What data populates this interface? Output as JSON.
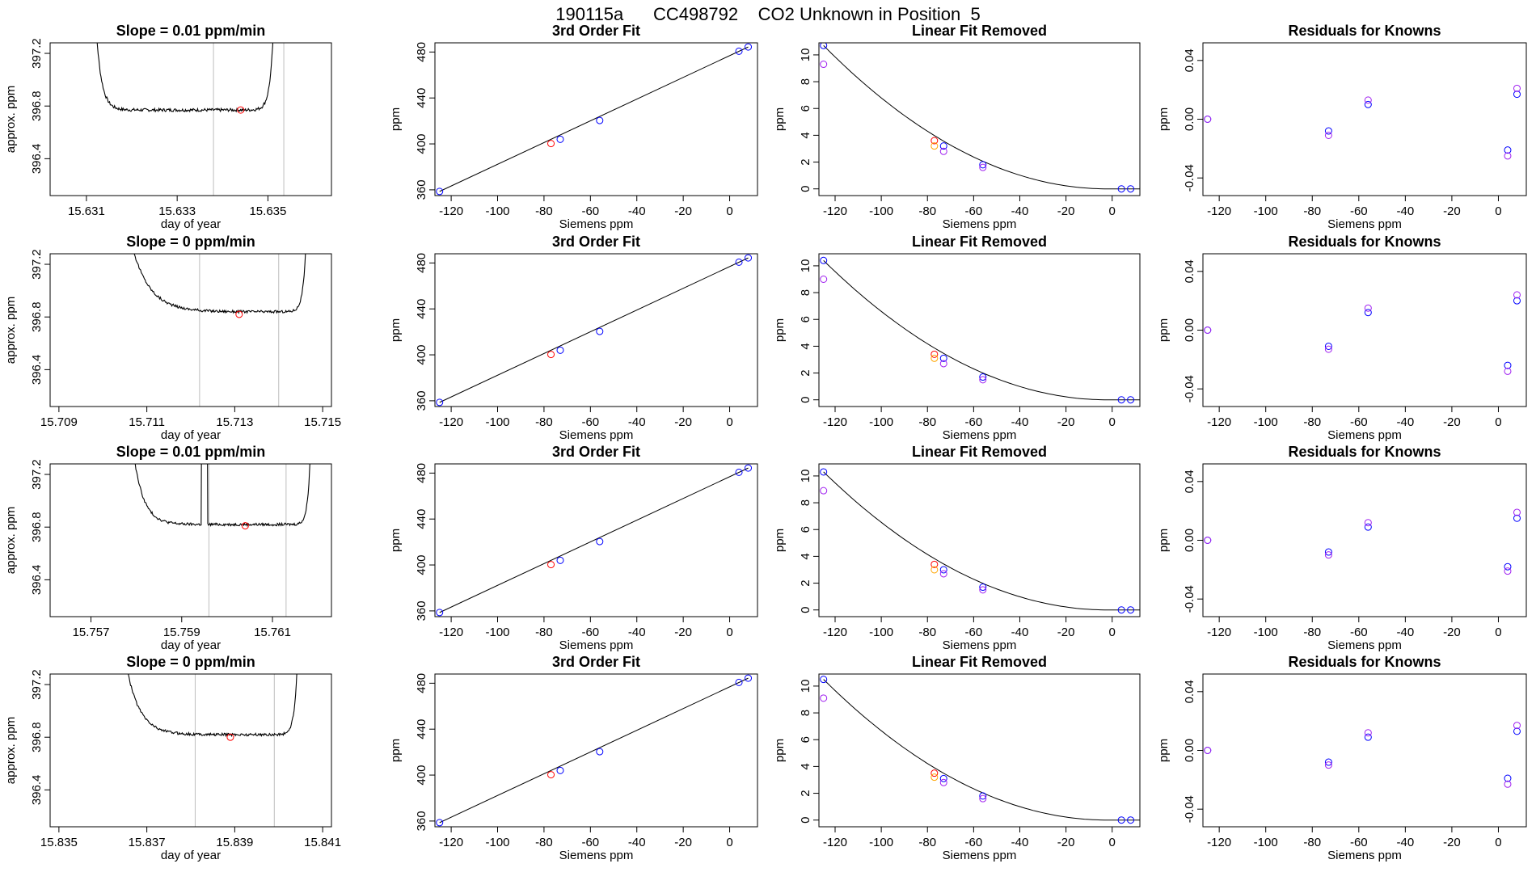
{
  "figure": {
    "title": "190115a      CC498792    CO2 Unknown in Position  5"
  },
  "colors": {
    "line": "#000000",
    "gridline": "#bebebe",
    "known": "#0000ff",
    "red": "#ff0000",
    "orange": "#ffa500",
    "purple": "#a020f0"
  },
  "chart_data": [
    {
      "row": 1,
      "col": 1,
      "type": "line",
      "title": "Slope =  0.01  ppm/min",
      "xlabel": "day of year",
      "ylabel": "approx. ppm",
      "xlim": [
        15.6302,
        15.6364
      ],
      "ylim": [
        396.12,
        397.28
      ],
      "xticks": [
        15.631,
        15.633,
        15.635
      ],
      "yticks": [
        396.4,
        396.8,
        397.2
      ],
      "vlines": [
        15.6338,
        15.63535
      ],
      "trace_x": [
        15.6311,
        15.6352
      ],
      "level": 396.77,
      "noise": 0.012,
      "decay": 0.00012,
      "rise": 8e-05,
      "glitch": null,
      "point": {
        "x": 15.6344,
        "y": 396.77
      }
    },
    {
      "row": 1,
      "col": 2,
      "type": "scatter",
      "title": "3rd Order Fit",
      "xlabel": "Siemens ppm",
      "ylabel": "ppm",
      "xlim": [
        -127,
        12
      ],
      "ylim": [
        355,
        488
      ],
      "xticks": [
        -120,
        -100,
        -80,
        -60,
        -40,
        -20,
        0
      ],
      "yticks": [
        360,
        400,
        440,
        480
      ],
      "fit": [
        [
          -125,
          358.6
        ],
        [
          8,
          484.4
        ]
      ],
      "points": [
        {
          "x": -125,
          "y": 358.6,
          "c": "known"
        },
        {
          "x": -77,
          "y": 400.3,
          "c": "red"
        },
        {
          "x": -73,
          "y": 404,
          "c": "known"
        },
        {
          "x": -56,
          "y": 420.4,
          "c": "known"
        },
        {
          "x": 4,
          "y": 480.7,
          "c": "known"
        },
        {
          "x": 8,
          "y": 484.4,
          "c": "known"
        }
      ]
    },
    {
      "row": 1,
      "col": 3,
      "type": "scatter",
      "title": "Linear Fit Removed",
      "xlabel": "Siemens ppm",
      "ylabel": "ppm",
      "xlim": [
        -127,
        12
      ],
      "ylim": [
        -0.5,
        10.9
      ],
      "xticks": [
        -120,
        -100,
        -80,
        -60,
        -40,
        -20,
        0
      ],
      "yticks": [
        0,
        2,
        4,
        6,
        8,
        10
      ],
      "curve": {
        "a": -125,
        "b": -2,
        "peak": 10.7
      },
      "points": [
        {
          "x": -125,
          "y": 10.7,
          "c": "known"
        },
        {
          "x": -125,
          "y": 9.3,
          "c": "purple"
        },
        {
          "x": -77,
          "y": 3.6,
          "c": "red"
        },
        {
          "x": -77,
          "y": 3.2,
          "c": "orange"
        },
        {
          "x": -73,
          "y": 3.2,
          "c": "known"
        },
        {
          "x": -73,
          "y": 2.8,
          "c": "purple"
        },
        {
          "x": -56,
          "y": 1.8,
          "c": "known"
        },
        {
          "x": -56,
          "y": 1.6,
          "c": "purple"
        },
        {
          "x": 4,
          "y": 0,
          "c": "known"
        },
        {
          "x": 8,
          "y": 0,
          "c": "known"
        }
      ]
    },
    {
      "row": 1,
      "col": 4,
      "type": "scatter",
      "title": "Residuals for Knowns",
      "xlabel": "Siemens ppm",
      "ylabel": "ppm",
      "xlim": [
        -127,
        12
      ],
      "ylim": [
        -0.052,
        0.052
      ],
      "xticks": [
        -120,
        -100,
        -80,
        -60,
        -40,
        -20,
        0
      ],
      "yticks": [
        -0.04,
        0.0,
        0.04
      ],
      "ytick_labels": [
        "-0.04",
        "0.00",
        "0.04"
      ],
      "points": [
        {
          "x": -125,
          "y": 0,
          "c": "known"
        },
        {
          "x": -125,
          "y": 0,
          "c": "purple"
        },
        {
          "x": -73,
          "y": -0.008,
          "c": "known"
        },
        {
          "x": -73,
          "y": -0.011,
          "c": "purple"
        },
        {
          "x": -56,
          "y": 0.01,
          "c": "known"
        },
        {
          "x": -56,
          "y": 0.013,
          "c": "purple"
        },
        {
          "x": 4,
          "y": -0.021,
          "c": "known"
        },
        {
          "x": 4,
          "y": -0.025,
          "c": "purple"
        },
        {
          "x": 8,
          "y": 0.017,
          "c": "known"
        },
        {
          "x": 8,
          "y": 0.021,
          "c": "purple"
        }
      ]
    },
    {
      "row": 2,
      "col": 1,
      "type": "line",
      "title": "Slope =  0  ppm/min",
      "xlabel": "day of year",
      "ylabel": "approx. ppm",
      "xlim": [
        15.7088,
        15.7152
      ],
      "ylim": [
        396.12,
        397.28
      ],
      "xticks": [
        15.709,
        15.711,
        15.713,
        15.715
      ],
      "yticks": [
        396.4,
        396.8,
        397.2
      ],
      "vlines": [
        15.7122,
        15.714
      ],
      "trace_x": [
        15.7102,
        15.7147
      ],
      "level": 396.84,
      "noise": 0.01,
      "decay": 0.0004,
      "rise": 7e-05,
      "glitch": null,
      "point": {
        "x": 15.7131,
        "y": 396.82
      }
    },
    {
      "row": 2,
      "col": 2,
      "type": "scatter",
      "title": "3rd Order Fit",
      "xlabel": "Siemens ppm",
      "ylabel": "ppm",
      "xlim": [
        -127,
        12
      ],
      "ylim": [
        355,
        488
      ],
      "xticks": [
        -120,
        -100,
        -80,
        -60,
        -40,
        -20,
        0
      ],
      "yticks": [
        360,
        400,
        440,
        480
      ],
      "fit": [
        [
          -125,
          358.6
        ],
        [
          8,
          484.4
        ]
      ],
      "points": [
        {
          "x": -125,
          "y": 358.6,
          "c": "known"
        },
        {
          "x": -77,
          "y": 400.3,
          "c": "red"
        },
        {
          "x": -73,
          "y": 404,
          "c": "known"
        },
        {
          "x": -56,
          "y": 420.4,
          "c": "known"
        },
        {
          "x": 4,
          "y": 480.7,
          "c": "known"
        },
        {
          "x": 8,
          "y": 484.4,
          "c": "known"
        }
      ]
    },
    {
      "row": 2,
      "col": 3,
      "type": "scatter",
      "title": "Linear Fit Removed",
      "xlabel": "Siemens ppm",
      "ylabel": "ppm",
      "xlim": [
        -127,
        12
      ],
      "ylim": [
        -0.5,
        10.9
      ],
      "xticks": [
        -120,
        -100,
        -80,
        -60,
        -40,
        -20,
        0
      ],
      "yticks": [
        0,
        2,
        4,
        6,
        8,
        10
      ],
      "curve": {
        "a": -125,
        "b": -2,
        "peak": 10.4
      },
      "points": [
        {
          "x": -125,
          "y": 10.4,
          "c": "known"
        },
        {
          "x": -125,
          "y": 9.0,
          "c": "purple"
        },
        {
          "x": -77,
          "y": 3.4,
          "c": "red"
        },
        {
          "x": -77,
          "y": 3.1,
          "c": "orange"
        },
        {
          "x": -73,
          "y": 3.1,
          "c": "known"
        },
        {
          "x": -73,
          "y": 2.7,
          "c": "purple"
        },
        {
          "x": -56,
          "y": 1.7,
          "c": "known"
        },
        {
          "x": -56,
          "y": 1.5,
          "c": "purple"
        },
        {
          "x": 4,
          "y": 0,
          "c": "known"
        },
        {
          "x": 8,
          "y": 0,
          "c": "known"
        }
      ]
    },
    {
      "row": 2,
      "col": 4,
      "type": "scatter",
      "title": "Residuals for Knowns",
      "xlabel": "Siemens ppm",
      "ylabel": "ppm",
      "xlim": [
        -127,
        12
      ],
      "ylim": [
        -0.052,
        0.052
      ],
      "xticks": [
        -120,
        -100,
        -80,
        -60,
        -40,
        -20,
        0
      ],
      "yticks": [
        -0.04,
        0.0,
        0.04
      ],
      "ytick_labels": [
        "-0.04",
        "0.00",
        "0.04"
      ],
      "points": [
        {
          "x": -125,
          "y": 0,
          "c": "known"
        },
        {
          "x": -125,
          "y": 0,
          "c": "purple"
        },
        {
          "x": -73,
          "y": -0.011,
          "c": "known"
        },
        {
          "x": -73,
          "y": -0.013,
          "c": "purple"
        },
        {
          "x": -56,
          "y": 0.012,
          "c": "known"
        },
        {
          "x": -56,
          "y": 0.015,
          "c": "purple"
        },
        {
          "x": 4,
          "y": -0.024,
          "c": "known"
        },
        {
          "x": 4,
          "y": -0.028,
          "c": "purple"
        },
        {
          "x": 8,
          "y": 0.02,
          "c": "known"
        },
        {
          "x": 8,
          "y": 0.024,
          "c": "purple"
        }
      ]
    },
    {
      "row": 3,
      "col": 1,
      "type": "line",
      "title": "Slope =  0.01  ppm/min",
      "xlabel": "day of year",
      "ylabel": "approx. ppm",
      "xlim": [
        15.7561,
        15.7623
      ],
      "ylim": [
        396.12,
        397.28
      ],
      "xticks": [
        15.757,
        15.759,
        15.761
      ],
      "yticks": [
        396.4,
        396.8,
        397.2
      ],
      "vlines": [
        15.7596,
        15.7613
      ],
      "trace_x": [
        15.7577,
        15.7619
      ],
      "level": 396.82,
      "noise": 0.01,
      "decay": 0.00022,
      "rise": 6e-05,
      "glitch": {
        "x": 15.7595,
        "w": 6e-05
      },
      "point": {
        "x": 15.7604,
        "y": 396.81
      }
    },
    {
      "row": 3,
      "col": 2,
      "type": "scatter",
      "title": "3rd Order Fit",
      "xlabel": "Siemens ppm",
      "ylabel": "ppm",
      "xlim": [
        -127,
        12
      ],
      "ylim": [
        355,
        488
      ],
      "xticks": [
        -120,
        -100,
        -80,
        -60,
        -40,
        -20,
        0
      ],
      "yticks": [
        360,
        400,
        440,
        480
      ],
      "fit": [
        [
          -125,
          358.6
        ],
        [
          8,
          484.4
        ]
      ],
      "points": [
        {
          "x": -125,
          "y": 358.6,
          "c": "known"
        },
        {
          "x": -77,
          "y": 400.3,
          "c": "red"
        },
        {
          "x": -73,
          "y": 404,
          "c": "known"
        },
        {
          "x": -56,
          "y": 420.4,
          "c": "known"
        },
        {
          "x": 4,
          "y": 480.7,
          "c": "known"
        },
        {
          "x": 8,
          "y": 484.4,
          "c": "known"
        }
      ]
    },
    {
      "row": 3,
      "col": 3,
      "type": "scatter",
      "title": "Linear Fit Removed",
      "xlabel": "Siemens ppm",
      "ylabel": "ppm",
      "xlim": [
        -127,
        12
      ],
      "ylim": [
        -0.5,
        10.9
      ],
      "xticks": [
        -120,
        -100,
        -80,
        -60,
        -40,
        -20,
        0
      ],
      "yticks": [
        0,
        2,
        4,
        6,
        8,
        10
      ],
      "curve": {
        "a": -125,
        "b": -2,
        "peak": 10.3
      },
      "points": [
        {
          "x": -125,
          "y": 10.3,
          "c": "known"
        },
        {
          "x": -125,
          "y": 8.9,
          "c": "purple"
        },
        {
          "x": -77,
          "y": 3.4,
          "c": "red"
        },
        {
          "x": -77,
          "y": 3.0,
          "c": "orange"
        },
        {
          "x": -73,
          "y": 3.0,
          "c": "known"
        },
        {
          "x": -73,
          "y": 2.7,
          "c": "purple"
        },
        {
          "x": -56,
          "y": 1.7,
          "c": "known"
        },
        {
          "x": -56,
          "y": 1.5,
          "c": "purple"
        },
        {
          "x": 4,
          "y": 0,
          "c": "known"
        },
        {
          "x": 8,
          "y": 0,
          "c": "known"
        }
      ]
    },
    {
      "row": 3,
      "col": 4,
      "type": "scatter",
      "title": "Residuals for Knowns",
      "xlabel": "Siemens ppm",
      "ylabel": "ppm",
      "xlim": [
        -127,
        12
      ],
      "ylim": [
        -0.052,
        0.052
      ],
      "xticks": [
        -120,
        -100,
        -80,
        -60,
        -40,
        -20,
        0
      ],
      "yticks": [
        -0.04,
        0.0,
        0.04
      ],
      "ytick_labels": [
        "-0.04",
        "0.00",
        "0.04"
      ],
      "points": [
        {
          "x": -125,
          "y": 0,
          "c": "known"
        },
        {
          "x": -125,
          "y": 0,
          "c": "purple"
        },
        {
          "x": -73,
          "y": -0.008,
          "c": "known"
        },
        {
          "x": -73,
          "y": -0.01,
          "c": "purple"
        },
        {
          "x": -56,
          "y": 0.009,
          "c": "known"
        },
        {
          "x": -56,
          "y": 0.012,
          "c": "purple"
        },
        {
          "x": 4,
          "y": -0.018,
          "c": "known"
        },
        {
          "x": 4,
          "y": -0.021,
          "c": "purple"
        },
        {
          "x": 8,
          "y": 0.015,
          "c": "known"
        },
        {
          "x": 8,
          "y": 0.019,
          "c": "purple"
        }
      ]
    },
    {
      "row": 4,
      "col": 1,
      "type": "line",
      "title": "Slope =  0  ppm/min",
      "xlabel": "day of year",
      "ylabel": "approx. ppm",
      "xlim": [
        15.8348,
        15.8412
      ],
      "ylim": [
        396.12,
        397.28
      ],
      "xticks": [
        15.835,
        15.837,
        15.839,
        15.841
      ],
      "yticks": [
        396.4,
        396.8,
        397.2
      ],
      "vlines": [
        15.8381,
        15.8399
      ],
      "trace_x": [
        15.8362,
        15.8405
      ],
      "level": 396.82,
      "noise": 0.01,
      "decay": 0.0003,
      "rise": 7e-05,
      "glitch": null,
      "point": {
        "x": 15.8389,
        "y": 396.8
      }
    },
    {
      "row": 4,
      "col": 2,
      "type": "scatter",
      "title": "3rd Order Fit",
      "xlabel": "Siemens ppm",
      "ylabel": "ppm",
      "xlim": [
        -127,
        12
      ],
      "ylim": [
        355,
        488
      ],
      "xticks": [
        -120,
        -100,
        -80,
        -60,
        -40,
        -20,
        0
      ],
      "yticks": [
        360,
        400,
        440,
        480
      ],
      "fit": [
        [
          -125,
          358.6
        ],
        [
          8,
          484.4
        ]
      ],
      "points": [
        {
          "x": -125,
          "y": 358.6,
          "c": "known"
        },
        {
          "x": -77,
          "y": 400.3,
          "c": "red"
        },
        {
          "x": -73,
          "y": 404,
          "c": "known"
        },
        {
          "x": -56,
          "y": 420.4,
          "c": "known"
        },
        {
          "x": 4,
          "y": 480.7,
          "c": "known"
        },
        {
          "x": 8,
          "y": 484.4,
          "c": "known"
        }
      ]
    },
    {
      "row": 4,
      "col": 3,
      "type": "scatter",
      "title": "Linear Fit Removed",
      "xlabel": "Siemens ppm",
      "ylabel": "ppm",
      "xlim": [
        -127,
        12
      ],
      "ylim": [
        -0.5,
        10.9
      ],
      "xticks": [
        -120,
        -100,
        -80,
        -60,
        -40,
        -20,
        0
      ],
      "yticks": [
        0,
        2,
        4,
        6,
        8,
        10
      ],
      "curve": {
        "a": -125,
        "b": -2,
        "peak": 10.5
      },
      "points": [
        {
          "x": -125,
          "y": 10.5,
          "c": "known"
        },
        {
          "x": -125,
          "y": 9.1,
          "c": "purple"
        },
        {
          "x": -77,
          "y": 3.5,
          "c": "red"
        },
        {
          "x": -77,
          "y": 3.2,
          "c": "orange"
        },
        {
          "x": -73,
          "y": 3.1,
          "c": "known"
        },
        {
          "x": -73,
          "y": 2.8,
          "c": "purple"
        },
        {
          "x": -56,
          "y": 1.8,
          "c": "known"
        },
        {
          "x": -56,
          "y": 1.6,
          "c": "purple"
        },
        {
          "x": 4,
          "y": 0,
          "c": "known"
        },
        {
          "x": 8,
          "y": 0,
          "c": "known"
        }
      ]
    },
    {
      "row": 4,
      "col": 4,
      "type": "scatter",
      "title": "Residuals for Knowns",
      "xlabel": "Siemens ppm",
      "ylabel": "ppm",
      "xlim": [
        -127,
        12
      ],
      "ylim": [
        -0.052,
        0.052
      ],
      "xticks": [
        -120,
        -100,
        -80,
        -60,
        -40,
        -20,
        0
      ],
      "yticks": [
        -0.04,
        0.0,
        0.04
      ],
      "ytick_labels": [
        "-0.04",
        "0.00",
        "0.04"
      ],
      "points": [
        {
          "x": -125,
          "y": 0,
          "c": "known"
        },
        {
          "x": -125,
          "y": 0,
          "c": "purple"
        },
        {
          "x": -73,
          "y": -0.008,
          "c": "known"
        },
        {
          "x": -73,
          "y": -0.01,
          "c": "purple"
        },
        {
          "x": -56,
          "y": 0.009,
          "c": "known"
        },
        {
          "x": -56,
          "y": 0.012,
          "c": "purple"
        },
        {
          "x": 4,
          "y": -0.019,
          "c": "known"
        },
        {
          "x": 4,
          "y": -0.023,
          "c": "purple"
        },
        {
          "x": 8,
          "y": 0.013,
          "c": "known"
        },
        {
          "x": 8,
          "y": 0.017,
          "c": "purple"
        }
      ]
    }
  ]
}
